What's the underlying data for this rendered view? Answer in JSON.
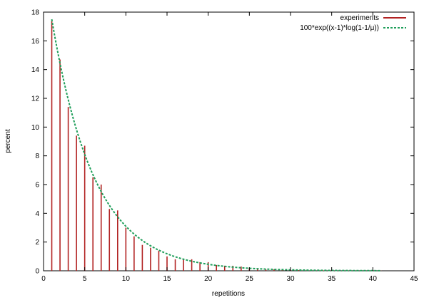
{
  "chart_data": {
    "type": "bar",
    "xlabel": "repetitions",
    "ylabel": "percent",
    "xlim": [
      0,
      45
    ],
    "ylim": [
      0,
      18
    ],
    "xticks": [
      0,
      5,
      10,
      15,
      20,
      25,
      30,
      35,
      40,
      45
    ],
    "yticks": [
      0,
      2,
      4,
      6,
      8,
      10,
      12,
      14,
      16,
      18
    ],
    "grid": false,
    "legend_position": "top-right",
    "colors": {
      "experiments": "#b22222",
      "fit": "#1f9e5a"
    },
    "series": [
      {
        "name": "experiments",
        "kind": "impulses",
        "x": [
          1,
          2,
          3,
          4,
          5,
          6,
          7,
          8,
          9,
          10,
          11,
          12,
          13,
          14,
          15,
          16,
          17,
          18,
          19,
          20,
          21,
          22,
          23,
          24,
          25,
          26,
          27,
          28,
          29,
          30,
          31,
          32,
          33,
          34,
          35,
          36,
          37,
          38,
          39,
          40,
          41
        ],
        "values": [
          17.4,
          14.7,
          11.4,
          9.4,
          8.7,
          6.5,
          6.0,
          4.3,
          4.2,
          3.0,
          2.4,
          1.8,
          1.6,
          1.4,
          1.0,
          0.8,
          0.8,
          0.8,
          0.6,
          0.6,
          0.4,
          0.35,
          0.35,
          0.3,
          0.2,
          0.12,
          0.1,
          0.1,
          0.08,
          0.06,
          0.05,
          0.04,
          0.03,
          0.03,
          0.02,
          0.02,
          0.01,
          0.01,
          0.01,
          0.01,
          0.01
        ]
      },
      {
        "name": "100*exp((x-1)*log(1-1/μ))",
        "kind": "function",
        "x_start": 1,
        "x_end": 41,
        "y_at_start": 17.5,
        "decay_per_step": 0.825
      }
    ]
  }
}
